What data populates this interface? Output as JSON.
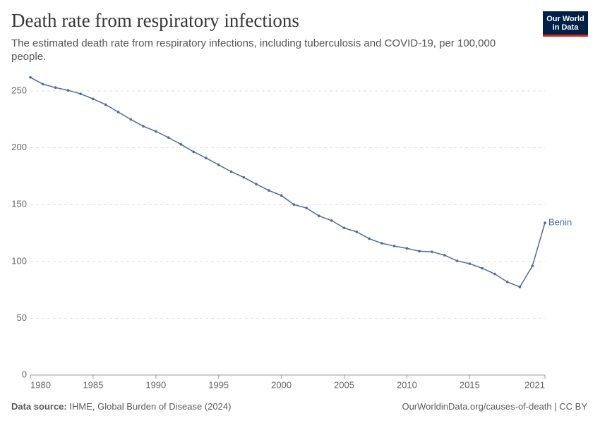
{
  "chart_data": {
    "type": "line",
    "title": "Death rate from respiratory infections",
    "subtitle": "The estimated death rate from respiratory infections, including tuberculosis and COVID-19, per 100,000 people.",
    "logo": [
      "Our World",
      "in Data"
    ],
    "source_label": "Data source:",
    "source": "IHME, Global Burden of Disease (2024)",
    "credit": "OurWorldinData.org/causes-of-death | CC BY",
    "x": [
      1980,
      1981,
      1982,
      1983,
      1984,
      1985,
      1986,
      1987,
      1988,
      1989,
      1990,
      1991,
      1992,
      1993,
      1994,
      1995,
      1996,
      1997,
      1998,
      1999,
      2000,
      2001,
      2002,
      2003,
      2004,
      2005,
      2006,
      2007,
      2008,
      2009,
      2010,
      2011,
      2012,
      2013,
      2014,
      2015,
      2016,
      2017,
      2018,
      2019,
      2020,
      2021
    ],
    "series": [
      {
        "name": "Benin",
        "color": "#4c6a9c",
        "values": [
          262,
          256,
          253,
          250.6,
          247.5,
          243,
          238,
          231.5,
          225,
          219,
          214.5,
          209,
          203,
          196.5,
          191,
          185,
          179,
          174,
          168,
          162.5,
          158,
          150,
          147,
          140,
          136,
          129.5,
          126,
          120,
          116,
          113.5,
          111.5,
          109,
          108.5,
          105.5,
          100.5,
          98,
          94,
          89,
          82,
          77.5,
          96,
          134
        ]
      }
    ],
    "xlim": [
      1980,
      2021
    ],
    "xticks": [
      1980,
      1985,
      1990,
      1995,
      2000,
      2005,
      2010,
      2015,
      2021
    ],
    "ylim": [
      0,
      262
    ],
    "yticks": [
      0,
      50,
      100,
      150,
      200,
      250
    ],
    "grid": true
  }
}
